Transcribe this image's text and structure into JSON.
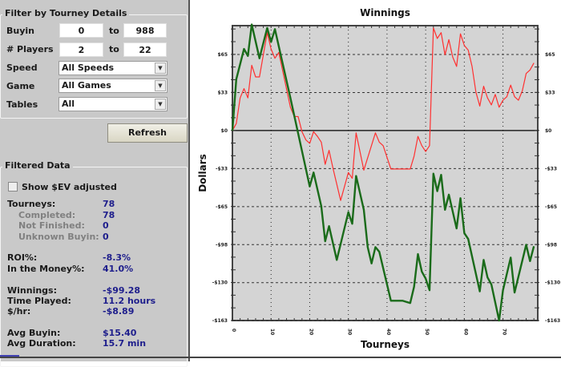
{
  "filter": {
    "title": "Filter by Tourney Details",
    "buyin_label": "Buyin",
    "buyin_min": "0",
    "buyin_max": "988",
    "players_label": "# Players",
    "players_min": "2",
    "players_max": "22",
    "to_label": "to",
    "speed_label": "Speed",
    "speed_value": "All Speeds",
    "game_label": "Game",
    "game_value": "All Games",
    "tables_label": "Tables",
    "tables_value": "All",
    "refresh_label": "Refresh"
  },
  "filtered": {
    "title": "Filtered Data",
    "ev_checkbox_label": "Show $EV adjusted",
    "ev_checked": false,
    "stats": [
      {
        "label": "Tourneys:",
        "value": "78",
        "sub": false
      },
      {
        "label": "Completed:",
        "value": "78",
        "sub": true
      },
      {
        "label": "Not Finished:",
        "value": "0",
        "sub": true
      },
      {
        "label": "Unknown Buyin:",
        "value": "0",
        "sub": true
      },
      {
        "label": "ROI%:",
        "value": "-8.3%",
        "sub": false
      },
      {
        "label": "In the Money%:",
        "value": "41.0%",
        "sub": false
      },
      {
        "label": "Winnings:",
        "value": "-$99.28",
        "sub": false
      },
      {
        "label": "Time Played:",
        "value": "11.2 hours",
        "sub": false
      },
      {
        "label": "$/hr:",
        "value": "-$8.89",
        "sub": false
      },
      {
        "label": "Avg Buyin:",
        "value": "$15.40",
        "sub": false
      },
      {
        "label": "Avg Duration:",
        "value": "15.7 min",
        "sub": false
      }
    ]
  },
  "chart_data": {
    "type": "line",
    "title": "Winnings",
    "xlabel": "Tourneys",
    "ylabel": "Dollars",
    "xlim": [
      0,
      79
    ],
    "ylim": [
      -163,
      90
    ],
    "xticks": [
      0,
      10,
      20,
      30,
      40,
      50,
      60,
      70
    ],
    "yticks": [
      {
        "v": 65.25,
        "label": "$65"
      },
      {
        "v": 32.625,
        "label": "$33"
      },
      {
        "v": 0,
        "label": "$0"
      },
      {
        "v": -32.625,
        "label": "-$33"
      },
      {
        "v": -65.25,
        "label": "-$65"
      },
      {
        "v": -97.875,
        "label": "-$98"
      },
      {
        "v": -130.5,
        "label": "-$130"
      },
      {
        "v": -163.125,
        "label": "-$163"
      }
    ],
    "grid": true,
    "series": [
      {
        "name": "winnings",
        "color": "#1a6b1a",
        "points": [
          [
            0,
            0
          ],
          [
            1,
            44
          ],
          [
            3,
            70
          ],
          [
            4,
            64
          ],
          [
            5,
            91
          ],
          [
            7,
            62
          ],
          [
            9,
            88
          ],
          [
            10,
            76
          ],
          [
            11,
            87
          ],
          [
            15,
            28
          ],
          [
            20,
            -48
          ],
          [
            21,
            -36
          ],
          [
            23,
            -65
          ],
          [
            24,
            -95
          ],
          [
            25,
            -82
          ],
          [
            27,
            -111
          ],
          [
            30,
            -70
          ],
          [
            31,
            -80
          ],
          [
            32,
            -39
          ],
          [
            34,
            -68
          ],
          [
            35,
            -100
          ],
          [
            36,
            -114
          ],
          [
            37,
            -100
          ],
          [
            38,
            -104
          ],
          [
            41,
            -146
          ],
          [
            44,
            -146
          ],
          [
            46,
            -148
          ],
          [
            47,
            -134
          ],
          [
            48,
            -106
          ],
          [
            49,
            -121
          ],
          [
            50,
            -127
          ],
          [
            51,
            -137
          ],
          [
            52,
            -37
          ],
          [
            53,
            -52
          ],
          [
            54,
            -38
          ],
          [
            55,
            -68
          ],
          [
            56,
            -55
          ],
          [
            58,
            -84
          ],
          [
            59,
            -58
          ],
          [
            60,
            -88
          ],
          [
            61,
            -93
          ],
          [
            64,
            -138
          ],
          [
            65,
            -111
          ],
          [
            66,
            -126
          ],
          [
            67,
            -132
          ],
          [
            69,
            -163
          ],
          [
            70,
            -137
          ],
          [
            72,
            -109
          ],
          [
            73,
            -139
          ],
          [
            76,
            -98
          ],
          [
            77,
            -112
          ],
          [
            78,
            -99.28
          ]
        ]
      },
      {
        "name": "ev-winnings",
        "color": "#ff3030",
        "points": [
          [
            0,
            0
          ],
          [
            1,
            6
          ],
          [
            2,
            28
          ],
          [
            3,
            36
          ],
          [
            4,
            28
          ],
          [
            5,
            56
          ],
          [
            6,
            46
          ],
          [
            7,
            46
          ],
          [
            9,
            84
          ],
          [
            10,
            70
          ],
          [
            11,
            62
          ],
          [
            12,
            67
          ],
          [
            15,
            20
          ],
          [
            16,
            12
          ],
          [
            17,
            12
          ],
          [
            18,
            -1
          ],
          [
            19,
            -8
          ],
          [
            20,
            -11
          ],
          [
            21,
            -1
          ],
          [
            22,
            -5
          ],
          [
            23,
            -10
          ],
          [
            24,
            -29
          ],
          [
            25,
            -17
          ],
          [
            26,
            -32
          ],
          [
            28,
            -60
          ],
          [
            30,
            -36
          ],
          [
            31,
            -41
          ],
          [
            32,
            -2
          ],
          [
            34,
            -34
          ],
          [
            37,
            -2
          ],
          [
            38,
            -10
          ],
          [
            39,
            -13
          ],
          [
            41,
            -33
          ],
          [
            46,
            -33
          ],
          [
            47,
            -22
          ],
          [
            48,
            -5
          ],
          [
            49,
            -13
          ],
          [
            50,
            -18
          ],
          [
            51,
            -13
          ],
          [
            52,
            88
          ],
          [
            53,
            79
          ],
          [
            54,
            84
          ],
          [
            55,
            65
          ],
          [
            56,
            78
          ],
          [
            57,
            63
          ],
          [
            58,
            55
          ],
          [
            59,
            83
          ],
          [
            60,
            73
          ],
          [
            61,
            69
          ],
          [
            62,
            55
          ],
          [
            63,
            33
          ],
          [
            64,
            21
          ],
          [
            65,
            38
          ],
          [
            66,
            28
          ],
          [
            67,
            22
          ],
          [
            68,
            31
          ],
          [
            69,
            20
          ],
          [
            70,
            26
          ],
          [
            71,
            29
          ],
          [
            72,
            39
          ],
          [
            73,
            29
          ],
          [
            74,
            26
          ],
          [
            75,
            34
          ],
          [
            76,
            49
          ],
          [
            77,
            52
          ],
          [
            78,
            58
          ]
        ]
      }
    ]
  }
}
